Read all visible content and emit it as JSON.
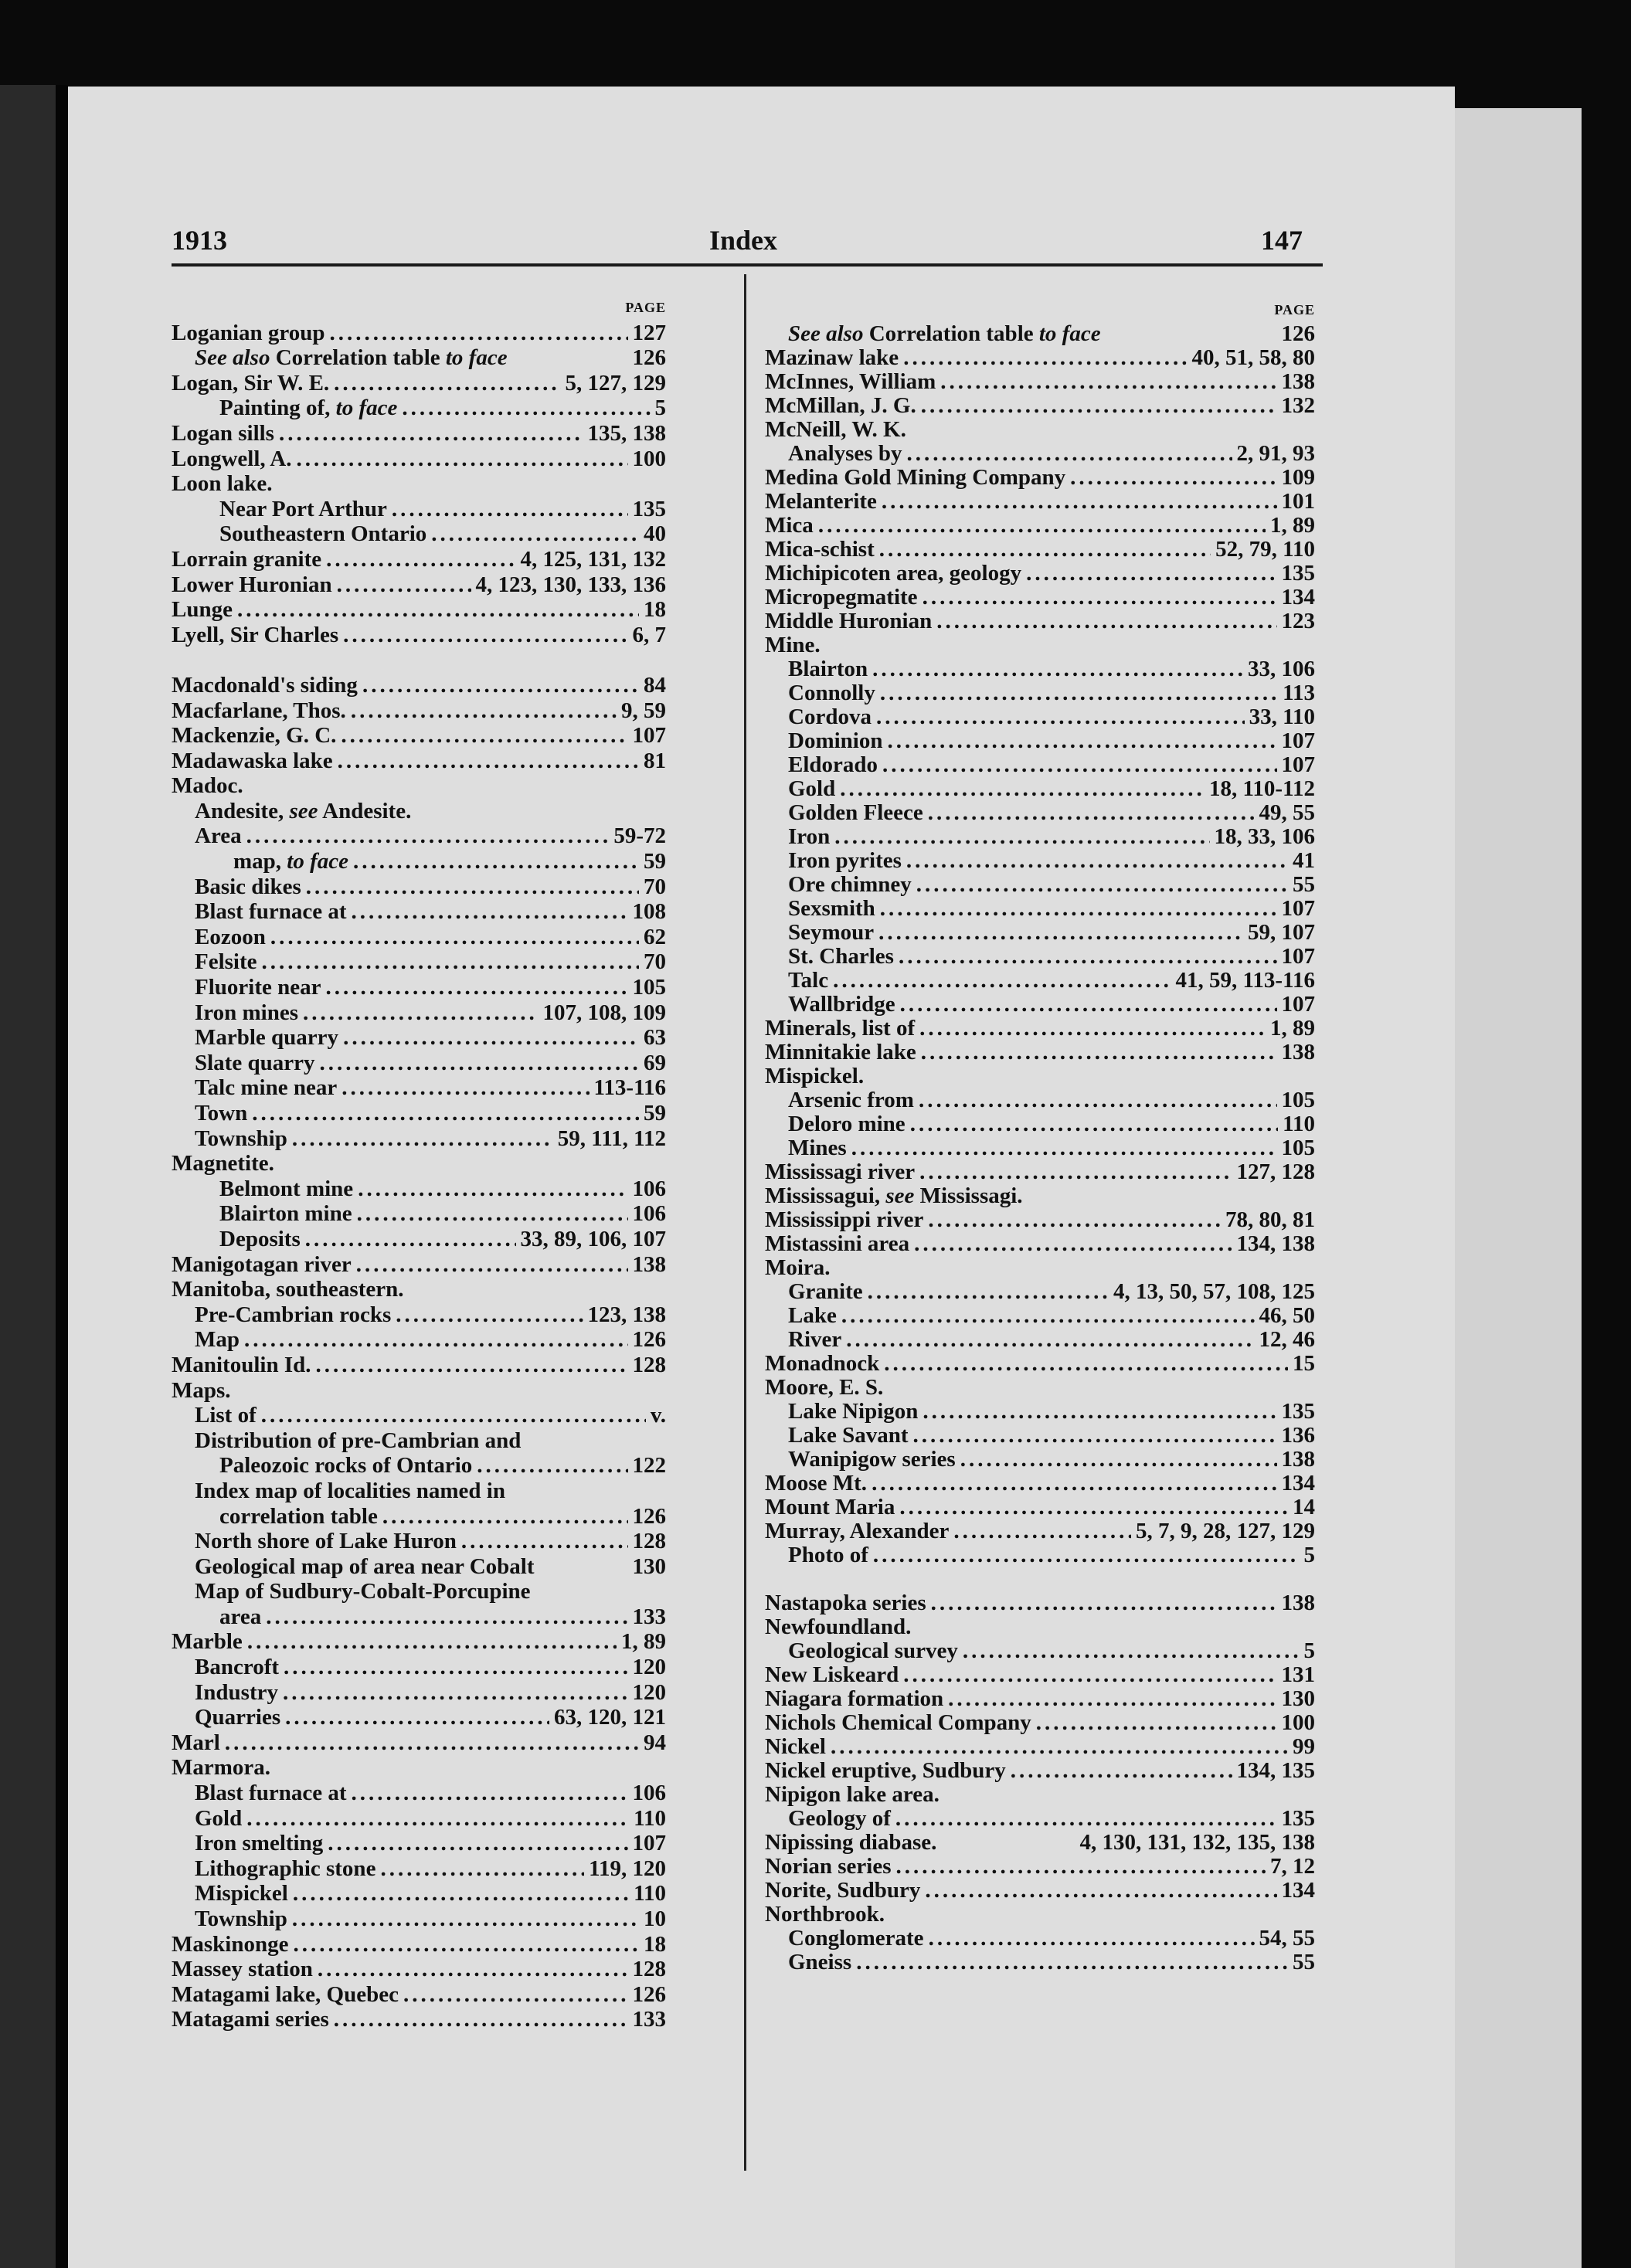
{
  "header": {
    "year": "1913",
    "title": "Index",
    "page_number": "147"
  },
  "page_column_label": "PAGE",
  "left_column": [
    {
      "t": "Loganian group",
      "p": "127",
      "l": 0
    },
    {
      "t": "See also Correlation table to face",
      "p": "126",
      "l": 1,
      "i": [
        "See also",
        "to face"
      ],
      "nodots": true
    },
    {
      "t": "Logan, Sir W. E.",
      "p": "5, 127, 129",
      "l": 0
    },
    {
      "t": "Painting of, to face",
      "p": "5",
      "l": 2,
      "i": [
        "to face"
      ]
    },
    {
      "t": "Logan sills",
      "p": "135, 138",
      "l": 0
    },
    {
      "t": "Longwell, A.",
      "p": "100",
      "l": 0
    },
    {
      "t": "Loon lake.",
      "l": 0
    },
    {
      "t": "Near Port Arthur",
      "p": "135",
      "l": 2
    },
    {
      "t": "Southeastern Ontario",
      "p": "40",
      "l": 2
    },
    {
      "t": "Lorrain granite",
      "p": "4, 125, 131, 132",
      "l": 0
    },
    {
      "t": "Lower Huronian",
      "p": "4, 123, 130, 133, 136",
      "l": 0
    },
    {
      "t": "Lunge",
      "p": "18",
      "l": 0
    },
    {
      "t": "Lyell, Sir Charles",
      "p": "6, 7",
      "l": 0
    },
    {
      "t": "",
      "l": 0
    },
    {
      "t": "Macdonald's siding",
      "p": "84",
      "l": 0
    },
    {
      "t": "Macfarlane, Thos.",
      "p": "9, 59",
      "l": 0
    },
    {
      "t": "Mackenzie, G. C.",
      "p": "107",
      "l": 0
    },
    {
      "t": "Madawaska lake",
      "p": "81",
      "l": 0
    },
    {
      "t": "Madoc.",
      "l": 0
    },
    {
      "t": "Andesite, see Andesite.",
      "l": 1,
      "i": [
        "see"
      ]
    },
    {
      "t": "Area",
      "p": "59-72",
      "l": 1
    },
    {
      "t": "map, to face",
      "p": "59",
      "l": 3,
      "i": [
        "to face"
      ]
    },
    {
      "t": "Basic dikes",
      "p": "70",
      "l": 1
    },
    {
      "t": "Blast furnace at",
      "p": "108",
      "l": 1
    },
    {
      "t": "Eozoon",
      "p": "62",
      "l": 1
    },
    {
      "t": "Felsite",
      "p": "70",
      "l": 1
    },
    {
      "t": "Fluorite near",
      "p": "105",
      "l": 1
    },
    {
      "t": "Iron mines",
      "p": "107, 108, 109",
      "l": 1
    },
    {
      "t": "Marble quarry",
      "p": "63",
      "l": 1
    },
    {
      "t": "Slate quarry",
      "p": "69",
      "l": 1
    },
    {
      "t": "Talc mine near",
      "p": "113-116",
      "l": 1
    },
    {
      "t": "Town",
      "p": "59",
      "l": 1
    },
    {
      "t": "Township",
      "p": "59, 111, 112",
      "l": 1
    },
    {
      "t": "Magnetite.",
      "l": 0
    },
    {
      "t": "Belmont mine",
      "p": "106",
      "l": 2
    },
    {
      "t": "Blairton mine",
      "p": "106",
      "l": 2
    },
    {
      "t": "Deposits",
      "p": "33, 89, 106, 107",
      "l": 2
    },
    {
      "t": "Manigotagan river",
      "p": "138",
      "l": 0
    },
    {
      "t": "Manitoba, southeastern.",
      "l": 0
    },
    {
      "t": "Pre-Cambrian rocks",
      "p": "123, 138",
      "l": 1
    },
    {
      "t": "Map",
      "p": "126",
      "l": 1
    },
    {
      "t": "Manitoulin Id.",
      "p": "128",
      "l": 0
    },
    {
      "t": "Maps.",
      "l": 0
    },
    {
      "t": "List of",
      "p": "v.",
      "l": 1
    },
    {
      "t": "Distribution of pre-Cambrian and",
      "l": 1
    },
    {
      "t": "Paleozoic rocks of Ontario",
      "p": "122",
      "l": 2
    },
    {
      "t": "Index map of localities named in",
      "l": 1
    },
    {
      "t": "correlation table",
      "p": "126",
      "l": 2
    },
    {
      "t": "North shore of Lake Huron",
      "p": "128",
      "l": 1
    },
    {
      "t": "Geological map of area near Cobalt",
      "p": "130",
      "l": 1,
      "nodots": true
    },
    {
      "t": "Map of Sudbury-Cobalt-Porcupine",
      "l": 1
    },
    {
      "t": "area",
      "p": "133",
      "l": 2
    },
    {
      "t": "Marble",
      "p": "1, 89",
      "l": 0
    },
    {
      "t": "Bancroft",
      "p": "120",
      "l": 1
    },
    {
      "t": "Industry",
      "p": "120",
      "l": 1
    },
    {
      "t": "Quarries",
      "p": "63, 120, 121",
      "l": 1
    },
    {
      "t": "Marl",
      "p": "94",
      "l": 0
    },
    {
      "t": "Marmora.",
      "l": 0
    },
    {
      "t": "Blast furnace at",
      "p": "106",
      "l": 1
    },
    {
      "t": "Gold",
      "p": "110",
      "l": 1
    },
    {
      "t": "Iron smelting",
      "p": "107",
      "l": 1
    },
    {
      "t": "Lithographic stone",
      "p": "119, 120",
      "l": 1
    },
    {
      "t": "Mispickel",
      "p": "110",
      "l": 1
    },
    {
      "t": "Township",
      "p": "10",
      "l": 1
    },
    {
      "t": "Maskinonge",
      "p": "18",
      "l": 0
    },
    {
      "t": "Massey station",
      "p": "128",
      "l": 0
    },
    {
      "t": "Matagami lake, Quebec",
      "p": "126",
      "l": 0
    },
    {
      "t": "Matagami series",
      "p": "133",
      "l": 0
    }
  ],
  "right_column": [
    {
      "t": "See also Correlation table to face",
      "p": "126",
      "l": 1,
      "i": [
        "See also",
        "to face"
      ],
      "nodots": true
    },
    {
      "t": "Mazinaw lake",
      "p": "40, 51, 58, 80",
      "l": 0
    },
    {
      "t": "McInnes, William",
      "p": "138",
      "l": 0
    },
    {
      "t": "McMillan, J. G.",
      "p": "132",
      "l": 0
    },
    {
      "t": "McNeill, W. K.",
      "l": 0
    },
    {
      "t": "Analyses by",
      "p": "2, 91, 93",
      "l": 1
    },
    {
      "t": "Medina Gold Mining Company",
      "p": "109",
      "l": 0
    },
    {
      "t": "Melanterite",
      "p": "101",
      "l": 0
    },
    {
      "t": "Mica",
      "p": "1, 89",
      "l": 0
    },
    {
      "t": "Mica-schist",
      "p": "52, 79, 110",
      "l": 0
    },
    {
      "t": "Michipicoten area, geology",
      "p": "135",
      "l": 0
    },
    {
      "t": "Micropegmatite",
      "p": "134",
      "l": 0
    },
    {
      "t": "Middle Huronian",
      "p": "123",
      "l": 0
    },
    {
      "t": "Mine.",
      "l": 0
    },
    {
      "t": "Blairton",
      "p": "33, 106",
      "l": 1
    },
    {
      "t": "Connolly",
      "p": "113",
      "l": 1
    },
    {
      "t": "Cordova",
      "p": "33, 110",
      "l": 1
    },
    {
      "t": "Dominion",
      "p": "107",
      "l": 1
    },
    {
      "t": "Eldorado",
      "p": "107",
      "l": 1
    },
    {
      "t": "Gold",
      "p": "18, 110-112",
      "l": 1
    },
    {
      "t": "Golden Fleece",
      "p": "49, 55",
      "l": 1
    },
    {
      "t": "Iron",
      "p": "18, 33, 106",
      "l": 1
    },
    {
      "t": "Iron pyrites",
      "p": "41",
      "l": 1
    },
    {
      "t": "Ore chimney",
      "p": "55",
      "l": 1
    },
    {
      "t": "Sexsmith",
      "p": "107",
      "l": 1
    },
    {
      "t": "Seymour",
      "p": "59, 107",
      "l": 1
    },
    {
      "t": "St. Charles",
      "p": "107",
      "l": 1
    },
    {
      "t": "Talc",
      "p": "41, 59, 113-116",
      "l": 1
    },
    {
      "t": "Wallbridge",
      "p": "107",
      "l": 1
    },
    {
      "t": "Minerals, list of",
      "p": "1, 89",
      "l": 0
    },
    {
      "t": "Minnitakie lake",
      "p": "138",
      "l": 0
    },
    {
      "t": "Mispickel.",
      "l": 0
    },
    {
      "t": "Arsenic from",
      "p": "105",
      "l": 1
    },
    {
      "t": "Deloro mine",
      "p": "110",
      "l": 1
    },
    {
      "t": "Mines",
      "p": "105",
      "l": 1
    },
    {
      "t": "Mississagi river",
      "p": "127, 128",
      "l": 0
    },
    {
      "t": "Mississagui, see Mississagi.",
      "l": 0,
      "i": [
        "see"
      ]
    },
    {
      "t": "Mississippi river",
      "p": "78, 80, 81",
      "l": 0
    },
    {
      "t": "Mistassini area",
      "p": "134, 138",
      "l": 0
    },
    {
      "t": "Moira.",
      "l": 0
    },
    {
      "t": "Granite",
      "p": "4, 13, 50, 57, 108, 125",
      "l": 1
    },
    {
      "t": "Lake",
      "p": "46, 50",
      "l": 1
    },
    {
      "t": "River",
      "p": "12, 46",
      "l": 1
    },
    {
      "t": "Monadnock",
      "p": "15",
      "l": 0
    },
    {
      "t": "Moore, E. S.",
      "l": 0
    },
    {
      "t": "Lake Nipigon",
      "p": "135",
      "l": 1
    },
    {
      "t": "Lake Savant",
      "p": "136",
      "l": 1
    },
    {
      "t": "Wanipigow series",
      "p": "138",
      "l": 1
    },
    {
      "t": "Moose Mt.",
      "p": "134",
      "l": 0
    },
    {
      "t": "Mount Maria",
      "p": "14",
      "l": 0
    },
    {
      "t": "Murray, Alexander",
      "p": "5, 7, 9, 28, 127, 129",
      "l": 0
    },
    {
      "t": "Photo of",
      "p": "5",
      "l": 1
    },
    {
      "t": "",
      "l": 0
    },
    {
      "t": "Nastapoka series",
      "p": "138",
      "l": 0
    },
    {
      "t": "Newfoundland.",
      "l": 0
    },
    {
      "t": "Geological survey",
      "p": "5",
      "l": 1
    },
    {
      "t": "New Liskeard",
      "p": "131",
      "l": 0
    },
    {
      "t": "Niagara formation",
      "p": "130",
      "l": 0
    },
    {
      "t": "Nichols Chemical Company",
      "p": "100",
      "l": 0
    },
    {
      "t": "Nickel",
      "p": "99",
      "l": 0
    },
    {
      "t": "Nickel eruptive, Sudbury",
      "p": "134, 135",
      "l": 0
    },
    {
      "t": "Nipigon lake area.",
      "l": 0
    },
    {
      "t": "Geology of",
      "p": "135",
      "l": 1
    },
    {
      "t": "Nipissing diabase.",
      "p": "4, 130, 131, 132, 135, 138",
      "l": 0,
      "nodots": true
    },
    {
      "t": "Norian series",
      "p": "7, 12",
      "l": 0
    },
    {
      "t": "Norite, Sudbury",
      "p": "134",
      "l": 0
    },
    {
      "t": "Northbrook.",
      "l": 0
    },
    {
      "t": "Conglomerate",
      "p": "54, 55",
      "l": 1
    },
    {
      "t": "Gneiss",
      "p": "55",
      "l": 1
    }
  ]
}
